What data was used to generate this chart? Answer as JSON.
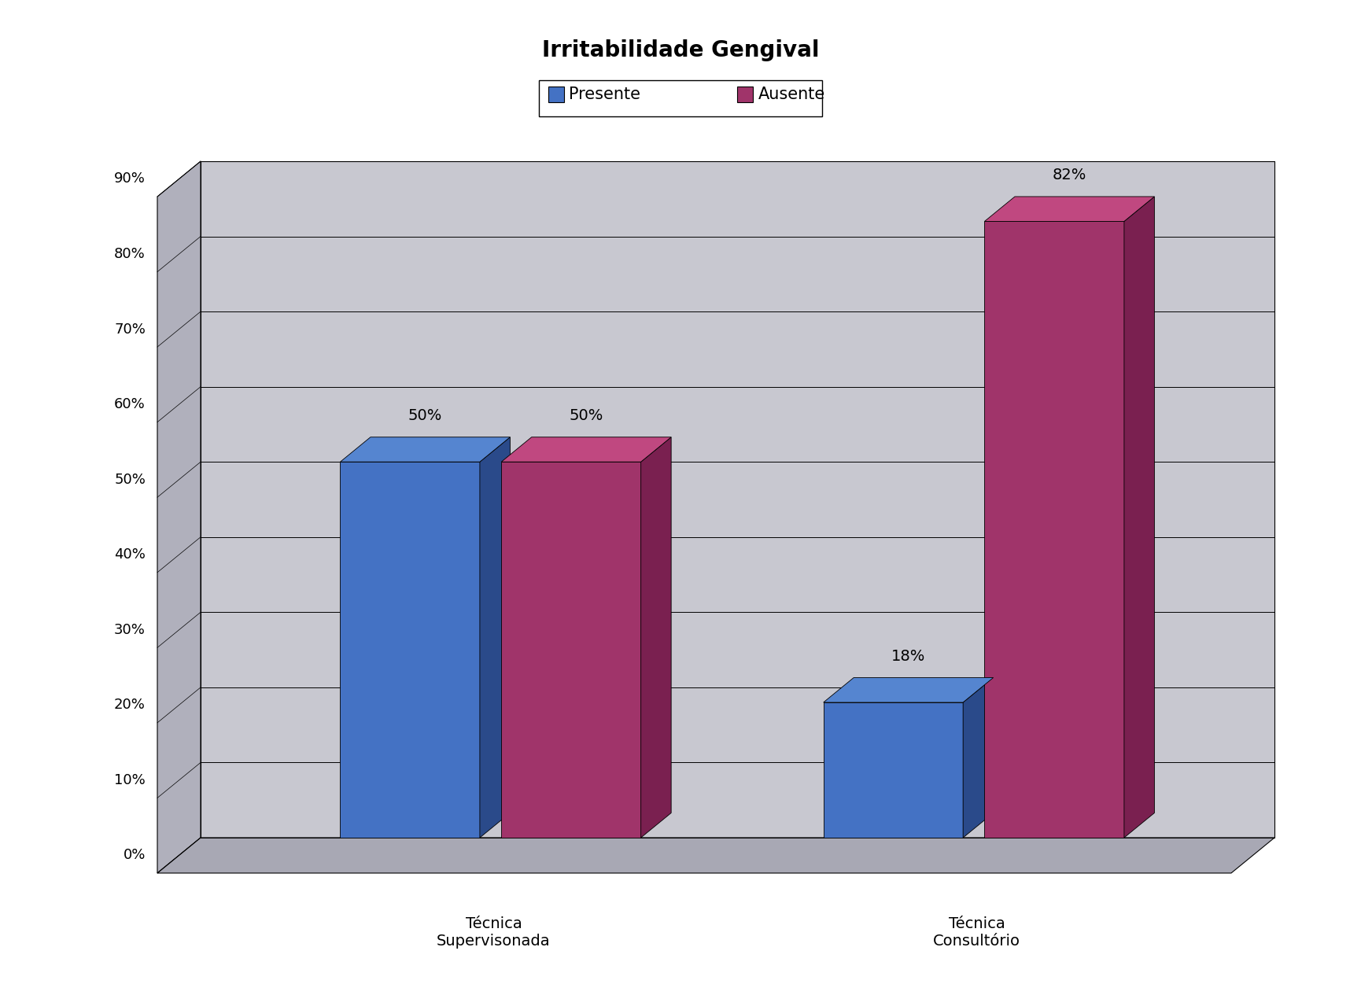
{
  "title": "Irritabilidade Gengival",
  "title_fontsize": 20,
  "title_fontweight": "bold",
  "categories": [
    "Técnica\nSupervisonada",
    "Técnica\nConsultório"
  ],
  "series": {
    "Presente": [
      50,
      18
    ],
    "Ausente": [
      50,
      82
    ]
  },
  "bar_colors": {
    "Presente": "#4472C4",
    "Ausente": "#A0346A"
  },
  "bar_colors_side": {
    "Presente": "#2A4A8A",
    "Ausente": "#7A2050"
  },
  "bar_colors_top": {
    "Presente": "#5585D0",
    "Ausente": "#C04880"
  },
  "yticks": [
    0,
    10,
    20,
    30,
    40,
    50,
    60,
    70,
    80,
    90
  ],
  "ytick_labels": [
    "0%",
    "10%",
    "20%",
    "30%",
    "40%",
    "50%",
    "60%",
    "70%",
    "80%",
    "90%"
  ],
  "background_color": "#FFFFFF",
  "wall_color": "#C8C8D0",
  "floor_color": "#B0B0BA",
  "legend_labels": [
    "Presente",
    "Ausente"
  ],
  "label_fontsize": 14,
  "axis_fontsize": 14,
  "ytick_fontsize": 13,
  "xtick_fontsize": 14
}
